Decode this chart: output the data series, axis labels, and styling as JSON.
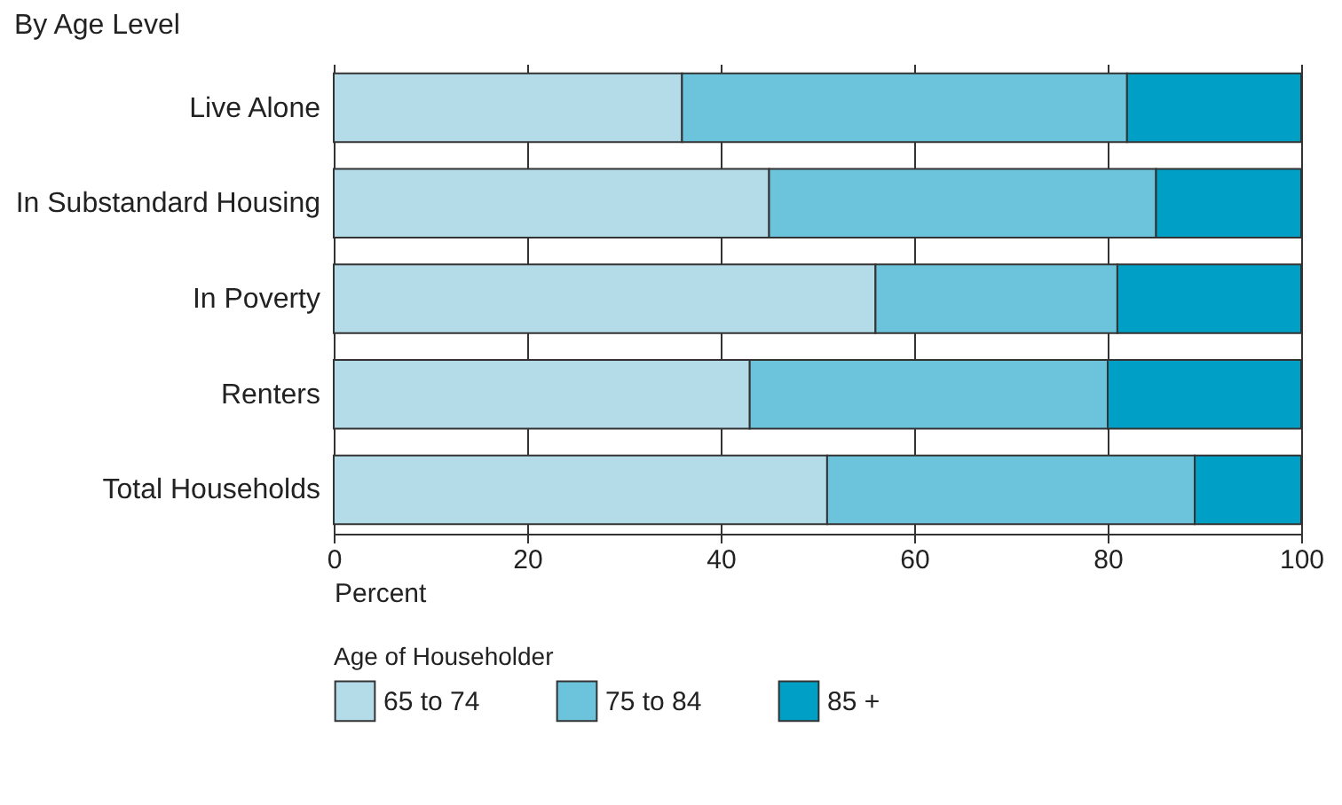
{
  "chart_data": {
    "type": "bar",
    "orientation": "horizontal",
    "stacked": true,
    "title": "By Age Level",
    "xlabel": "Percent",
    "legend_title": "Age of Householder",
    "categories": [
      "Live Alone",
      "In Substandard Housing",
      "In Poverty",
      "Renters",
      "Total Households"
    ],
    "series": [
      {
        "name": "65 to 74",
        "color": "#b4dbe8",
        "values": [
          36,
          45,
          56,
          43,
          51
        ]
      },
      {
        "name": "75 to 84",
        "color": "#6cc3dc",
        "values": [
          46,
          40,
          25,
          37,
          38
        ]
      },
      {
        "name": "85 +",
        "color": "#00a0c6",
        "values": [
          18,
          15,
          19,
          20,
          11
        ]
      }
    ],
    "xlim": [
      0,
      100
    ],
    "xticks": [
      0,
      20,
      40,
      60,
      80,
      100
    ],
    "grid": "x",
    "legend": "bottom"
  }
}
